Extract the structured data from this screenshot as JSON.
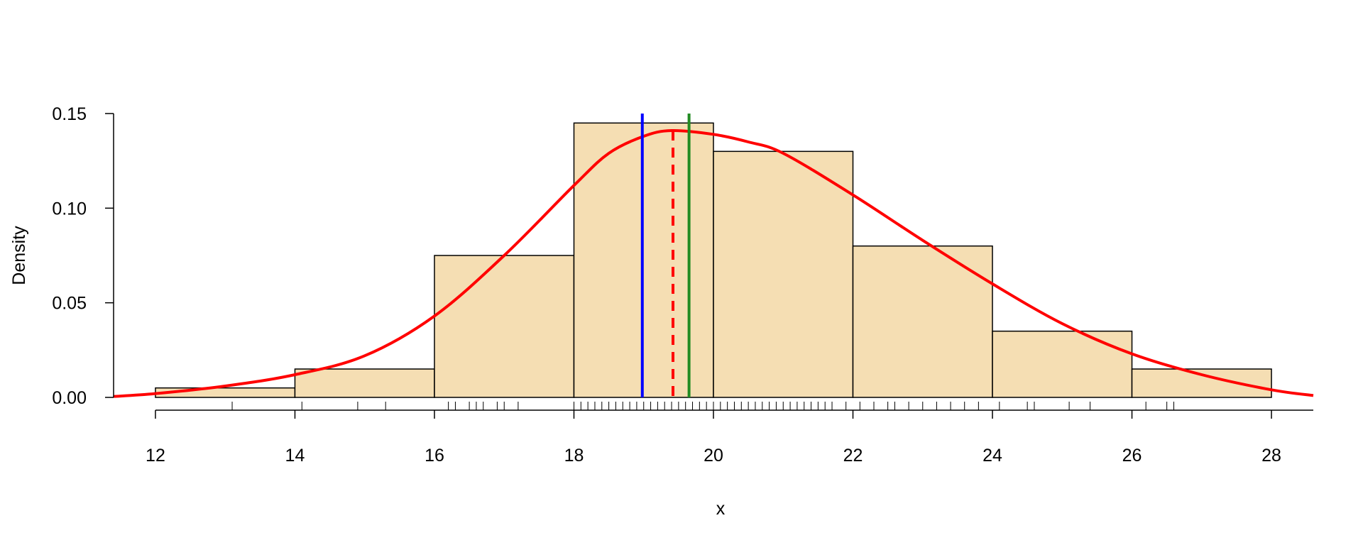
{
  "chart_data": {
    "type": "bar",
    "subtype": "histogram-with-density",
    "xlabel": "x",
    "ylabel": "Density",
    "xlim": [
      11.4,
      28.6
    ],
    "ylim": [
      0,
      0.15
    ],
    "x_ticks": [
      "12",
      "14",
      "16",
      "18",
      "20",
      "22",
      "24",
      "26",
      "28"
    ],
    "y_ticks": [
      "0.00",
      "0.05",
      "0.10",
      "0.15"
    ],
    "bins": [
      {
        "from": 12,
        "to": 14,
        "density": 0.005
      },
      {
        "from": 14,
        "to": 16,
        "density": 0.015
      },
      {
        "from": 16,
        "to": 18,
        "density": 0.075
      },
      {
        "from": 18,
        "to": 20,
        "density": 0.145
      },
      {
        "from": 20,
        "to": 22,
        "density": 0.13
      },
      {
        "from": 22,
        "to": 24,
        "density": 0.08
      },
      {
        "from": 24,
        "to": 26,
        "density": 0.035
      },
      {
        "from": 26,
        "to": 28,
        "density": 0.015
      }
    ],
    "density_curve": {
      "color": "#FF0000",
      "x": [
        11.4,
        12.0,
        13.0,
        14.0,
        15.0,
        16.0,
        17.0,
        18.0,
        18.5,
        19.0,
        19.4,
        20.0,
        20.5,
        21.0,
        22.0,
        23.0,
        24.0,
        25.0,
        26.0,
        27.0,
        28.0,
        28.6
      ],
      "y": [
        0.0005,
        0.002,
        0.006,
        0.012,
        0.022,
        0.043,
        0.075,
        0.112,
        0.129,
        0.138,
        0.141,
        0.139,
        0.135,
        0.129,
        0.107,
        0.083,
        0.06,
        0.039,
        0.023,
        0.012,
        0.004,
        0.001
      ]
    },
    "vertical_lines": [
      {
        "x": 18.98,
        "color": "#0000FF",
        "style": "solid"
      },
      {
        "x": 19.42,
        "color": "#FF0000",
        "style": "dashed"
      },
      {
        "x": 19.65,
        "color": "#228B22",
        "style": "solid"
      }
    ],
    "rug": [
      13.1,
      14.1,
      14.9,
      15.3,
      16.2,
      16.3,
      16.5,
      16.6,
      16.7,
      16.9,
      17.0,
      17.2,
      18.0,
      18.1,
      18.2,
      18.3,
      18.4,
      18.5,
      18.6,
      18.7,
      18.8,
      18.9,
      19.0,
      19.1,
      19.2,
      19.3,
      19.4,
      19.5,
      19.6,
      19.7,
      19.8,
      19.9,
      20.0,
      20.1,
      20.2,
      20.3,
      20.4,
      20.5,
      20.6,
      20.7,
      20.8,
      20.9,
      21.0,
      21.1,
      21.2,
      21.3,
      21.4,
      21.5,
      21.6,
      21.7,
      21.9,
      22.1,
      22.3,
      22.5,
      22.6,
      22.8,
      23.0,
      23.2,
      23.4,
      23.6,
      23.8,
      24.1,
      24.5,
      24.6,
      25.1,
      25.4,
      26.2,
      26.5,
      26.6
    ]
  }
}
